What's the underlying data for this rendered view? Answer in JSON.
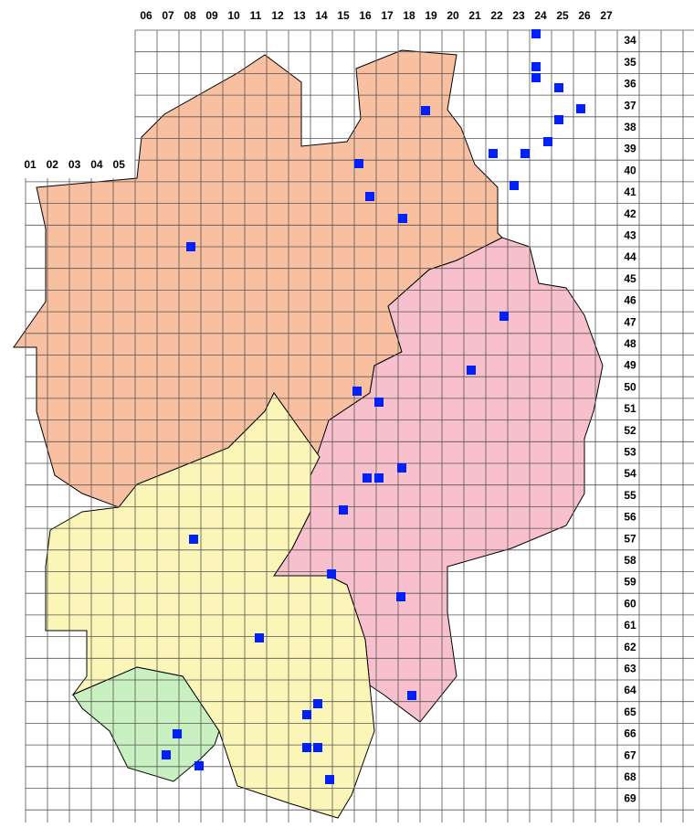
{
  "map": {
    "column_labels": [
      "01",
      "02",
      "03",
      "04",
      "05",
      "06",
      "07",
      "08",
      "09",
      "10",
      "11",
      "12",
      "13",
      "14",
      "15",
      "16",
      "17",
      "18",
      "19",
      "20",
      "21",
      "22",
      "23",
      "24",
      "25",
      "26",
      "27"
    ],
    "row_labels": [
      "34",
      "35",
      "36",
      "37",
      "38",
      "39",
      "40",
      "41",
      "42",
      "43",
      "44",
      "45",
      "46",
      "47",
      "48",
      "49",
      "50",
      "51",
      "52",
      "53",
      "54",
      "55",
      "56",
      "57",
      "58",
      "59",
      "60",
      "61",
      "62",
      "63",
      "64",
      "65",
      "66",
      "67",
      "68",
      "69"
    ]
  }
}
